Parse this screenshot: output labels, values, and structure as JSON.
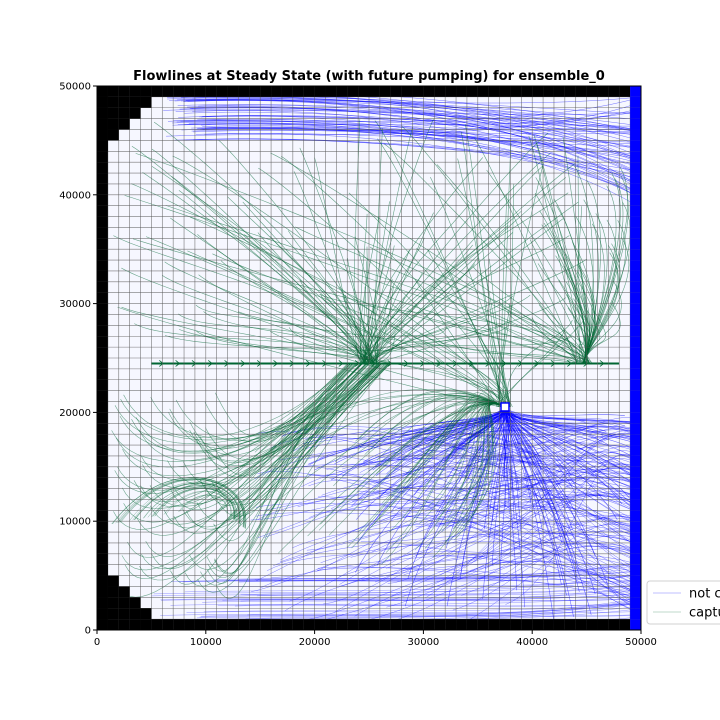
{
  "chart_data": {
    "type": "line",
    "title": "Flowlines at Steady State (with future pumping) for ensemble_0",
    "xlabel": "",
    "ylabel": "",
    "xlim": [
      0,
      50000
    ],
    "ylim": [
      0,
      50000
    ],
    "x_ticks": [
      "0",
      "10000",
      "20000",
      "30000",
      "40000",
      "50000"
    ],
    "y_ticks": [
      "0",
      "10000",
      "20000",
      "30000",
      "40000",
      "50000"
    ],
    "grid": {
      "nrow": 50,
      "ncol": 50,
      "cell_size": 1000
    },
    "colors": {
      "not_captured": "#0000ff",
      "captured": "#006633",
      "inactive": "#000000",
      "boundary": "#0000ff",
      "gridline": "#555555"
    },
    "features": {
      "pumping_well": {
        "x": 37500,
        "y": 20500
      },
      "drain_line": {
        "y": 24500,
        "x_start": 5000,
        "x_end": 48000
      },
      "drain_sinks": [
        25000,
        44700
      ],
      "inactive_corner_steps": [
        5,
        4,
        3,
        2,
        1
      ],
      "constant_head_column": 49
    },
    "series": [
      {
        "name": "not captured"
      },
      {
        "name": "captured"
      }
    ],
    "legend": {
      "placement": "bottom-right (outside)",
      "entries": [
        "not captured",
        "captured"
      ]
    }
  }
}
